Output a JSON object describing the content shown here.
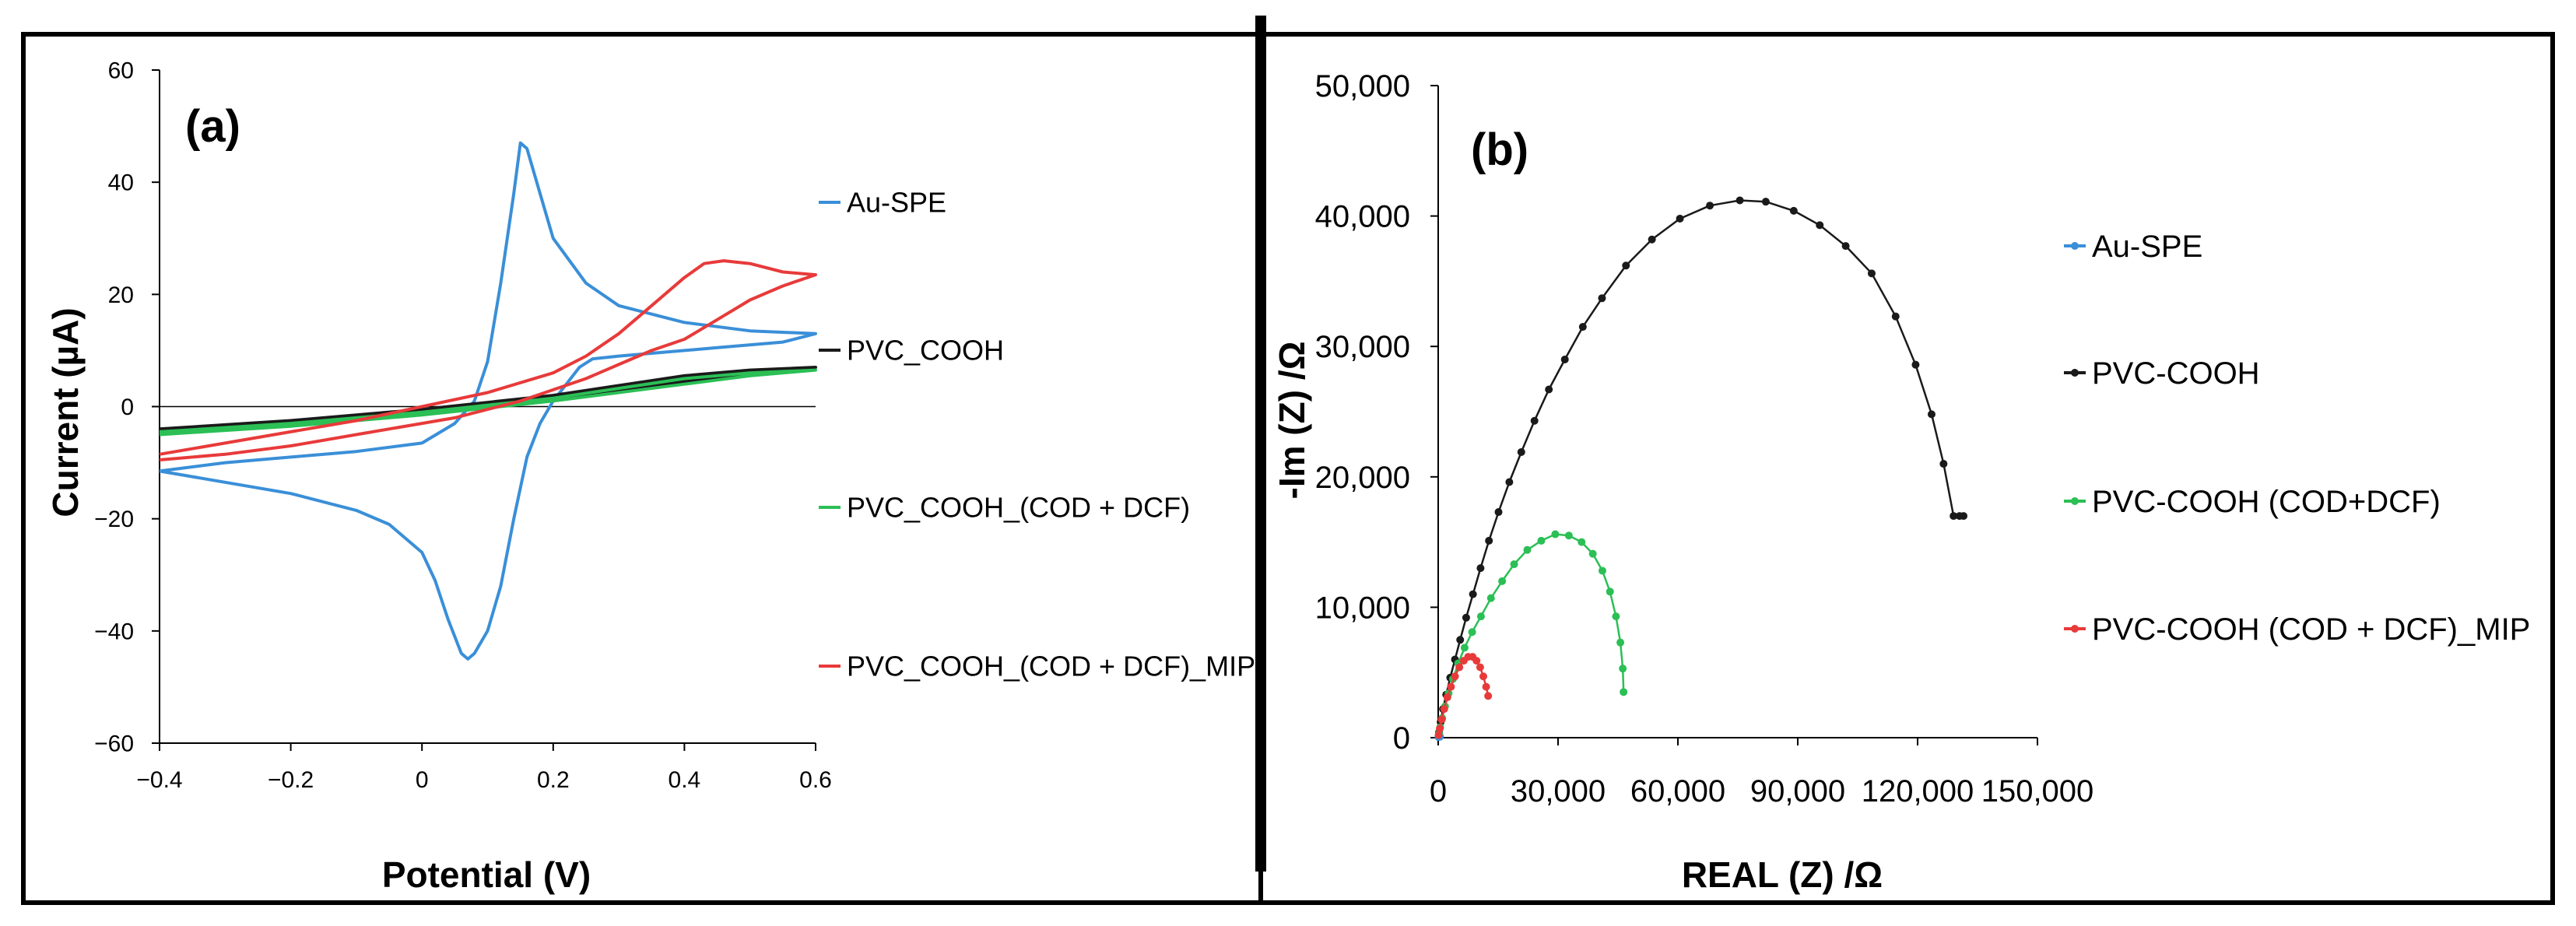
{
  "chart_data": [
    {
      "panel_label": "(a)",
      "type": "line",
      "title": "",
      "xlabel": "Potential (V)",
      "ylabel": "Current (µA)",
      "xlim": [
        -0.4,
        0.6
      ],
      "ylim": [
        -60,
        60
      ],
      "x_ticks": [
        -0.4,
        -0.2,
        0,
        0.2,
        0.4,
        0.6
      ],
      "x_tick_labels": [
        "−0.4",
        "−0.2",
        "0",
        "0.2",
        "0.4",
        "0.6"
      ],
      "y_ticks": [
        60,
        40,
        20,
        0,
        -20,
        -40,
        -60
      ],
      "y_tick_labels": [
        "60",
        "40",
        "20",
        "0",
        "−20",
        "−40",
        "−60"
      ],
      "grid": false,
      "legend_position": "right",
      "series": [
        {
          "name": "Au-SPE",
          "legend_label": "Au-SPE",
          "color": "#3A8FD8",
          "x": [
            -0.4,
            -0.3,
            -0.2,
            -0.1,
            0.0,
            0.05,
            0.08,
            0.1,
            0.12,
            0.14,
            0.15,
            0.16,
            0.18,
            0.2,
            0.25,
            0.3,
            0.4,
            0.5,
            0.6,
            0.55,
            0.45,
            0.35,
            0.3,
            0.26,
            0.24,
            0.22,
            0.2,
            0.18,
            0.16,
            0.14,
            0.12,
            0.1,
            0.08,
            0.07,
            0.06,
            0.04,
            0.02,
            0.0,
            -0.05,
            -0.1,
            -0.2,
            -0.3,
            -0.4
          ],
          "y": [
            -11.5,
            -10,
            -9,
            -8,
            -6.5,
            -3,
            1,
            8,
            22,
            38,
            47,
            46,
            38,
            30,
            22,
            18,
            15,
            13.5,
            13,
            11.5,
            10.5,
            9.5,
            9,
            8.5,
            7,
            4,
            1,
            -3,
            -9,
            -20,
            -32,
            -40,
            -44,
            -45,
            -44,
            -38,
            -31,
            -26,
            -21,
            -18.5,
            -15.5,
            -13.5,
            -11.5
          ]
        },
        {
          "name": "PVC_COOH",
          "legend_label": "PVC_COOH",
          "color": "#1A1A1A",
          "x": [
            -0.4,
            -0.2,
            0.0,
            0.2,
            0.4,
            0.5,
            0.6,
            0.5,
            0.4,
            0.2,
            0.0,
            -0.2,
            -0.4
          ],
          "y": [
            -4,
            -2.5,
            -0.5,
            2,
            5.5,
            6.5,
            7,
            6,
            4.5,
            1.5,
            -1,
            -3,
            -4.5
          ]
        },
        {
          "name": "PVC_COOH_(COD + DCF)",
          "legend_label": "PVC_COOH_(COD + DCF)",
          "color": "#2BBF55",
          "x": [
            -0.4,
            -0.2,
            0.0,
            0.2,
            0.4,
            0.5,
            0.6,
            0.5,
            0.4,
            0.2,
            0.0,
            -0.2,
            -0.4
          ],
          "y": [
            -4.5,
            -3,
            -1,
            1.5,
            5,
            6,
            6.5,
            5.5,
            4,
            1,
            -1.5,
            -3.5,
            -5
          ]
        },
        {
          "name": "PVC_COOH_(COD + DCF)_MIP",
          "legend_label": "PVC_COOH_(COD + DCF)_MIP",
          "color": "#E83A3A",
          "x": [
            -0.4,
            -0.3,
            -0.2,
            -0.1,
            0.0,
            0.1,
            0.2,
            0.25,
            0.3,
            0.35,
            0.4,
            0.43,
            0.46,
            0.5,
            0.55,
            0.6,
            0.55,
            0.5,
            0.45,
            0.4,
            0.35,
            0.3,
            0.25,
            0.2,
            0.15,
            0.1,
            0.05,
            0.0,
            -0.1,
            -0.2,
            -0.3,
            -0.4
          ],
          "y": [
            -8.5,
            -6.5,
            -4.5,
            -2.5,
            0,
            2.5,
            6,
            9,
            13,
            18,
            23,
            25.5,
            26,
            25.5,
            24,
            23.5,
            21.5,
            19,
            15.5,
            12,
            10,
            7.5,
            5,
            3,
            1,
            -0.5,
            -2,
            -3,
            -5,
            -7,
            -8.5,
            -9.5
          ]
        }
      ]
    },
    {
      "panel_label": "(b)",
      "type": "scatter",
      "title": "",
      "xlabel": "REAL (Z) /Ω",
      "ylabel": "-Im (Z) /Ω",
      "xlim": [
        0,
        150000
      ],
      "ylim": [
        0,
        50000
      ],
      "x_ticks": [
        0,
        30000,
        60000,
        90000,
        120000,
        150000
      ],
      "x_tick_labels": [
        "0",
        "30,000",
        "60,000",
        "90,000",
        "120,000",
        "150,000"
      ],
      "y_ticks": [
        0,
        10000,
        20000,
        30000,
        40000,
        50000
      ],
      "y_tick_labels": [
        "0",
        "10,000",
        "20,000",
        "30,000",
        "40,000",
        "50,000"
      ],
      "grid": false,
      "legend_position": "right",
      "series": [
        {
          "name": "Au-SPE",
          "legend_label": "Au-SPE",
          "color": "#3A8FD8",
          "x": [
            80,
            150,
            250,
            350,
            450
          ],
          "y": [
            50,
            120,
            150,
            130,
            80
          ]
        },
        {
          "name": "PVC-COOH",
          "legend_label": "PVC-COOH",
          "color": "#1A1A1A",
          "x": [
            200,
            600,
            1200,
            2000,
            3000,
            4200,
            5500,
            7000,
            8700,
            10600,
            12700,
            15100,
            17800,
            20800,
            24100,
            27700,
            31700,
            36200,
            41000,
            47000,
            53500,
            60500,
            68000,
            75500,
            82000,
            89000,
            95500,
            102000,
            108500,
            114500,
            119500,
            123500,
            126500,
            129000,
            130500,
            131500
          ],
          "y": [
            400,
            1200,
            2200,
            3300,
            4600,
            6000,
            7500,
            9200,
            11000,
            13000,
            15100,
            17300,
            19600,
            21900,
            24300,
            26700,
            29000,
            31500,
            33700,
            36200,
            38200,
            39800,
            40800,
            41200,
            41100,
            40400,
            39300,
            37700,
            35600,
            32300,
            28600,
            24800,
            21000,
            17000,
            17000,
            17000
          ]
        },
        {
          "name": "PVC-COOH (COD+DCF)",
          "legend_label": "PVC-COOH (COD+DCF)",
          "color": "#2BBF55",
          "x": [
            200,
            500,
            1000,
            1700,
            2600,
            3700,
            5000,
            6600,
            8500,
            10700,
            13200,
            16000,
            19000,
            22300,
            25800,
            29300,
            32700,
            35900,
            38700,
            41100,
            43000,
            44500,
            45600,
            46200,
            46400
          ],
          "y": [
            300,
            800,
            1500,
            2400,
            3400,
            4500,
            5700,
            6900,
            8100,
            9300,
            10700,
            12000,
            13300,
            14400,
            15100,
            15600,
            15500,
            15000,
            14100,
            12800,
            11200,
            9300,
            7300,
            5300,
            3500
          ]
        },
        {
          "name": "PVC-COOH (COD + DCF)_MIP",
          "legend_label": "PVC-COOH (COD + DCF)_MIP",
          "color": "#E83A3A",
          "x": [
            100,
            400,
            900,
            1500,
            2300,
            3200,
            4200,
            5300,
            6400,
            7500,
            8600,
            9600,
            10500,
            11300,
            12000,
            12500
          ],
          "y": [
            200,
            700,
            1400,
            2200,
            3100,
            3900,
            4700,
            5400,
            5900,
            6200,
            6200,
            5900,
            5400,
            4700,
            3900,
            3200
          ]
        }
      ]
    }
  ]
}
